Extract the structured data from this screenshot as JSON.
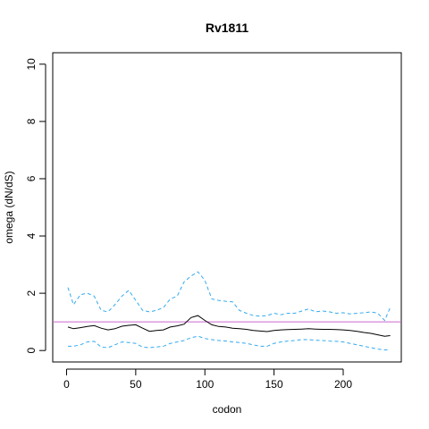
{
  "chart_data": {
    "type": "line",
    "title": "Rv1811",
    "xlabel": "codon",
    "ylabel": "omega (dN/dS)",
    "xlim": [
      -10,
      242
    ],
    "ylim": [
      -0.4,
      10.4
    ],
    "x_ticks": [
      "0",
      "50",
      "100",
      "150",
      "200"
    ],
    "x_tick_values": [
      0,
      50,
      100,
      150,
      200
    ],
    "y_ticks": [
      "0",
      "2",
      "4",
      "6",
      "8",
      "10"
    ],
    "y_tick_values": [
      0,
      2,
      4,
      6,
      8,
      10
    ],
    "grid": false,
    "legend": "none",
    "reference_line": {
      "y": 1,
      "color": "#cc66cc"
    },
    "series": [
      {
        "role": "estimate",
        "color": "#000000",
        "dash": "solid",
        "x": [
          1,
          5,
          10,
          15,
          20,
          25,
          30,
          35,
          40,
          45,
          50,
          55,
          60,
          65,
          70,
          75,
          80,
          85,
          90,
          95,
          100,
          105,
          110,
          115,
          120,
          125,
          130,
          135,
          140,
          145,
          150,
          155,
          160,
          165,
          170,
          175,
          180,
          185,
          190,
          195,
          200,
          205,
          210,
          215,
          220,
          225,
          230,
          234
        ],
        "values": [
          0.82,
          0.76,
          0.8,
          0.84,
          0.87,
          0.78,
          0.72,
          0.76,
          0.85,
          0.88,
          0.9,
          0.78,
          0.67,
          0.7,
          0.72,
          0.82,
          0.86,
          0.92,
          1.15,
          1.22,
          1.05,
          0.9,
          0.84,
          0.82,
          0.78,
          0.76,
          0.74,
          0.7,
          0.68,
          0.66,
          0.7,
          0.72,
          0.73,
          0.74,
          0.75,
          0.76,
          0.75,
          0.74,
          0.74,
          0.73,
          0.72,
          0.7,
          0.67,
          0.63,
          0.6,
          0.55,
          0.5,
          0.52
        ]
      },
      {
        "role": "upper bound",
        "color": "#33aaee",
        "dash": "dashed",
        "x": [
          1,
          5,
          10,
          15,
          20,
          25,
          30,
          35,
          40,
          45,
          50,
          55,
          60,
          65,
          70,
          75,
          80,
          85,
          90,
          95,
          100,
          105,
          110,
          115,
          120,
          125,
          130,
          135,
          140,
          145,
          150,
          155,
          160,
          165,
          170,
          175,
          180,
          185,
          190,
          195,
          200,
          205,
          210,
          215,
          220,
          225,
          230,
          234
        ],
        "values": [
          2.2,
          1.6,
          1.95,
          2.0,
          1.9,
          1.4,
          1.35,
          1.6,
          1.9,
          2.1,
          1.75,
          1.4,
          1.35,
          1.4,
          1.5,
          1.8,
          1.9,
          2.4,
          2.6,
          2.75,
          2.45,
          1.8,
          1.75,
          1.72,
          1.7,
          1.4,
          1.3,
          1.22,
          1.2,
          1.22,
          1.3,
          1.25,
          1.3,
          1.3,
          1.38,
          1.45,
          1.35,
          1.38,
          1.35,
          1.3,
          1.32,
          1.28,
          1.3,
          1.32,
          1.35,
          1.3,
          1.05,
          1.5
        ]
      },
      {
        "role": "lower bound",
        "color": "#33aaee",
        "dash": "dashed",
        "x": [
          1,
          5,
          10,
          15,
          20,
          25,
          30,
          35,
          40,
          45,
          50,
          55,
          60,
          65,
          70,
          75,
          80,
          85,
          90,
          95,
          100,
          105,
          110,
          115,
          120,
          125,
          130,
          135,
          140,
          145,
          150,
          155,
          160,
          165,
          170,
          175,
          180,
          185,
          190,
          195,
          200,
          205,
          210,
          215,
          220,
          225,
          230,
          234
        ],
        "values": [
          0.15,
          0.15,
          0.2,
          0.3,
          0.32,
          0.12,
          0.1,
          0.2,
          0.3,
          0.28,
          0.25,
          0.12,
          0.1,
          0.12,
          0.15,
          0.25,
          0.3,
          0.35,
          0.45,
          0.5,
          0.42,
          0.38,
          0.35,
          0.33,
          0.3,
          0.28,
          0.25,
          0.2,
          0.15,
          0.15,
          0.25,
          0.3,
          0.33,
          0.35,
          0.38,
          0.38,
          0.36,
          0.35,
          0.33,
          0.32,
          0.3,
          0.25,
          0.2,
          0.15,
          0.1,
          0.05,
          0.02,
          0.03
        ]
      }
    ]
  }
}
